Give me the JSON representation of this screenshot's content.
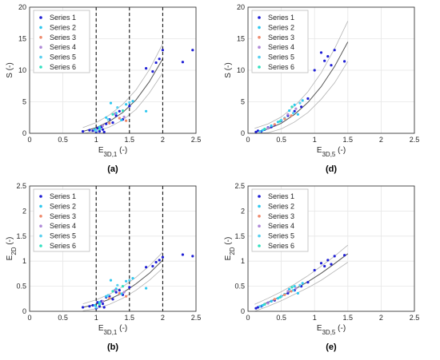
{
  "figure": {
    "colors": {
      "axis": "#262626",
      "grid": "#e6e6e6",
      "fit": "#555555",
      "band": "#b3b3b3",
      "series1": "#1f1fd6",
      "series2": "#2ec8f0",
      "series3": "#f08a6c",
      "series4": "#b08ad8",
      "series5": "#58d0f0",
      "series6": "#30e0c0"
    },
    "legend_labels": [
      "Series 1",
      "Series 2",
      "Series 3",
      "Series 4",
      "Series 5",
      "Series 6"
    ]
  },
  "chart_data": [
    {
      "type": "scatter",
      "panel_label": "(a)",
      "xlabel": "E3D,1 (-)",
      "ylabel": "S (-)",
      "xlim": [
        0,
        2.5
      ],
      "ylim": [
        0,
        20
      ],
      "xticks": [
        "0",
        "0.5",
        "1",
        "1.5",
        "2",
        "2.5"
      ],
      "yticks": [
        "0",
        "5",
        "10",
        "15",
        "20"
      ],
      "grid": true,
      "legend_position": "top-left",
      "vlines": [
        1,
        1.5,
        2
      ],
      "fit": {
        "x": [
          0.8,
          1.0,
          1.2,
          1.4,
          1.6,
          1.8,
          2.0
        ],
        "y": [
          0.3,
          0.9,
          1.9,
          3.3,
          5.3,
          8.2,
          11.8
        ]
      },
      "band_upper": {
        "x": [
          0.8,
          1.0,
          1.2,
          1.4,
          1.6,
          1.8,
          2.0
        ],
        "y": [
          0.9,
          1.7,
          2.9,
          4.6,
          6.9,
          10.1,
          14.2
        ]
      },
      "band_lower": {
        "x": [
          0.8,
          1.0,
          1.2,
          1.4,
          1.6,
          1.8,
          2.0
        ],
        "y": [
          0.0,
          0.3,
          1.0,
          2.1,
          3.8,
          6.4,
          9.6
        ]
      },
      "series": [
        {
          "name": "Series 1",
          "x": [
            0.8,
            0.9,
            0.95,
            1.0,
            1.02,
            1.05,
            1.08,
            1.1,
            1.12,
            1.15,
            1.2,
            1.25,
            1.3,
            1.35,
            1.4,
            1.5,
            1.75,
            1.85,
            1.9,
            1.95,
            2.0,
            2.3,
            2.45
          ],
          "y": [
            0.3,
            0.5,
            0.4,
            0.2,
            0.8,
            0.3,
            1.0,
            0.6,
            0.2,
            1.5,
            2.2,
            1.7,
            2.8,
            3.5,
            2.2,
            4.3,
            10.3,
            9.8,
            11.2,
            11.8,
            13.2,
            11.3,
            13.2
          ]
        },
        {
          "name": "Series 2",
          "x": [
            0.98,
            1.05,
            1.15,
            1.22,
            1.3,
            1.38,
            1.45,
            1.55,
            1.75
          ],
          "y": [
            0.6,
            1.0,
            2.5,
            4.8,
            3.2,
            2.1,
            4.6,
            5.1,
            3.5
          ]
        },
        {
          "name": "Series 3",
          "x": [
            1.2,
            1.35,
            1.45
          ],
          "y": [
            1.6,
            2.4,
            2.0
          ]
        },
        {
          "name": "Series 4",
          "x": [
            1.1,
            1.28,
            1.42
          ],
          "y": [
            1.2,
            3.1,
            2.6
          ]
        },
        {
          "name": "Series 5",
          "x": [
            1.0,
            1.18,
            1.32,
            1.5
          ],
          "y": [
            0.4,
            2.2,
            4.1,
            4.9
          ]
        },
        {
          "name": "Series 6",
          "x": [
            1.05,
            1.25,
            1.4
          ],
          "y": [
            0.7,
            3.0,
            3.6
          ]
        }
      ]
    },
    {
      "type": "scatter",
      "panel_label": "(d)",
      "xlabel": "E3D,5 (-)",
      "ylabel": "S (-)",
      "xlim": [
        0,
        2.5
      ],
      "ylim": [
        0,
        20
      ],
      "xticks": [
        "0",
        "0.5",
        "1",
        "1.5",
        "2",
        "2.5"
      ],
      "yticks": [
        "0",
        "5",
        "10",
        "15",
        "20"
      ],
      "grid": true,
      "legend_position": "top-left",
      "vlines": [],
      "fit": {
        "x": [
          0.1,
          0.3,
          0.5,
          0.7,
          0.9,
          1.1,
          1.3,
          1.5
        ],
        "y": [
          0.2,
          0.7,
          1.6,
          3.0,
          4.9,
          7.4,
          10.6,
          14.5
        ]
      },
      "band_upper": {
        "x": [
          0.1,
          0.3,
          0.5,
          0.7,
          0.9,
          1.1,
          1.3,
          1.5
        ],
        "y": [
          0.8,
          1.5,
          2.6,
          4.3,
          6.6,
          9.6,
          13.4,
          17.8
        ]
      },
      "band_lower": {
        "x": [
          0.1,
          0.3,
          0.5,
          0.7,
          0.9,
          1.1,
          1.3,
          1.5
        ],
        "y": [
          0.0,
          0.1,
          0.7,
          1.8,
          3.3,
          5.4,
          8.0,
          11.4
        ]
      },
      "series": [
        {
          "name": "Series 1",
          "x": [
            0.12,
            0.15,
            0.2,
            0.25,
            0.3,
            0.35,
            0.4,
            0.5,
            0.6,
            0.7,
            0.8,
            0.9,
            1.0,
            1.1,
            1.15,
            1.2,
            1.25,
            1.3,
            1.45
          ],
          "y": [
            0.2,
            0.4,
            0.3,
            0.6,
            0.9,
            1.0,
            1.3,
            2.0,
            2.8,
            3.5,
            4.2,
            5.5,
            10.0,
            12.8,
            11.5,
            12.2,
            10.8,
            13.2,
            11.4
          ]
        },
        {
          "name": "Series 2",
          "x": [
            0.22,
            0.35,
            0.45,
            0.55,
            0.62,
            0.7,
            0.75,
            0.82
          ],
          "y": [
            0.5,
            1.2,
            1.8,
            2.4,
            3.6,
            4.5,
            3.0,
            5.2
          ]
        },
        {
          "name": "Series 3",
          "x": [
            0.4,
            0.55,
            0.65
          ],
          "y": [
            1.4,
            2.3,
            2.8
          ]
        },
        {
          "name": "Series 4",
          "x": [
            0.3,
            0.6,
            0.72
          ],
          "y": [
            0.8,
            3.0,
            3.9
          ]
        },
        {
          "name": "Series 5",
          "x": [
            0.18,
            0.5,
            0.68,
            0.78
          ],
          "y": [
            0.3,
            2.1,
            3.2,
            4.8
          ]
        },
        {
          "name": "Series 6",
          "x": [
            0.25,
            0.48,
            0.66
          ],
          "y": [
            0.7,
            1.9,
            4.2
          ]
        }
      ]
    },
    {
      "type": "scatter",
      "panel_label": "(b)",
      "xlabel": "E3D,1 (-)",
      "ylabel": "E2D (-)",
      "xlim": [
        0,
        2.5
      ],
      "ylim": [
        0,
        2.5
      ],
      "xticks": [
        "0",
        "0.5",
        "1",
        "1.5",
        "2",
        "2.5"
      ],
      "yticks": [
        "0",
        "0.5",
        "1",
        "1.5",
        "2",
        "2.5"
      ],
      "grid": true,
      "legend_position": "top-left",
      "vlines": [
        1,
        1.5,
        2
      ],
      "fit": {
        "x": [
          0.8,
          1.0,
          1.2,
          1.4,
          1.6,
          1.8,
          2.0
        ],
        "y": [
          0.08,
          0.14,
          0.24,
          0.37,
          0.55,
          0.76,
          1.02
        ]
      },
      "band_upper": {
        "x": [
          0.8,
          1.0,
          1.2,
          1.4,
          1.6,
          1.8,
          2.0
        ],
        "y": [
          0.15,
          0.23,
          0.34,
          0.49,
          0.68,
          0.91,
          1.18
        ]
      },
      "band_lower": {
        "x": [
          0.8,
          1.0,
          1.2,
          1.4,
          1.6,
          1.8,
          2.0
        ],
        "y": [
          0.01,
          0.05,
          0.14,
          0.26,
          0.42,
          0.62,
          0.86
        ]
      },
      "series": [
        {
          "name": "Series 1",
          "x": [
            0.8,
            0.9,
            0.95,
            1.0,
            1.02,
            1.05,
            1.08,
            1.1,
            1.12,
            1.15,
            1.2,
            1.25,
            1.3,
            1.35,
            1.4,
            1.5,
            1.75,
            1.85,
            1.9,
            1.95,
            2.0,
            2.3,
            2.45
          ],
          "y": [
            0.08,
            0.1,
            0.12,
            0.06,
            0.18,
            0.1,
            0.2,
            0.15,
            0.08,
            0.28,
            0.3,
            0.24,
            0.38,
            0.42,
            0.33,
            0.48,
            0.88,
            0.9,
            0.98,
            1.02,
            1.08,
            1.13,
            1.1
          ]
        },
        {
          "name": "Series 2",
          "x": [
            0.98,
            1.05,
            1.15,
            1.22,
            1.3,
            1.38,
            1.45,
            1.55,
            1.75
          ],
          "y": [
            0.12,
            0.18,
            0.3,
            0.62,
            0.45,
            0.35,
            0.6,
            0.66,
            0.46
          ]
        },
        {
          "name": "Series 3",
          "x": [
            1.2,
            1.35,
            1.45
          ],
          "y": [
            0.26,
            0.36,
            0.3
          ]
        },
        {
          "name": "Series 4",
          "x": [
            1.1,
            1.28,
            1.42
          ],
          "y": [
            0.2,
            0.42,
            0.38
          ]
        },
        {
          "name": "Series 5",
          "x": [
            1.0,
            1.18,
            1.32,
            1.5
          ],
          "y": [
            0.08,
            0.32,
            0.52,
            0.62
          ]
        },
        {
          "name": "Series 6",
          "x": [
            1.05,
            1.25,
            1.4
          ],
          "y": [
            0.14,
            0.4,
            0.5
          ]
        }
      ]
    },
    {
      "type": "scatter",
      "panel_label": "(e)",
      "xlabel": "E3D,5 (-)",
      "ylabel": "E2D (-)",
      "xlim": [
        0,
        2.5
      ],
      "ylim": [
        0,
        2.5
      ],
      "xticks": [
        "0",
        "0.5",
        "1",
        "1.5",
        "2",
        "2.5"
      ],
      "yticks": [
        "0",
        "0.5",
        "1",
        "1.5",
        "2",
        "2.5"
      ],
      "grid": true,
      "legend_position": "top-left",
      "vlines": [],
      "fit": {
        "x": [
          0.1,
          0.3,
          0.5,
          0.7,
          0.9,
          1.1,
          1.3,
          1.5
        ],
        "y": [
          0.06,
          0.18,
          0.3,
          0.44,
          0.59,
          0.76,
          0.95,
          1.15
        ]
      },
      "band_upper": {
        "x": [
          0.1,
          0.3,
          0.5,
          0.7,
          0.9,
          1.1,
          1.3,
          1.5
        ],
        "y": [
          0.14,
          0.26,
          0.39,
          0.54,
          0.71,
          0.9,
          1.1,
          1.32
        ]
      },
      "band_lower": {
        "x": [
          0.1,
          0.3,
          0.5,
          0.7,
          0.9,
          1.1,
          1.3,
          1.5
        ],
        "y": [
          0.0,
          0.1,
          0.21,
          0.34,
          0.47,
          0.62,
          0.8,
          0.98
        ]
      },
      "series": [
        {
          "name": "Series 1",
          "x": [
            0.12,
            0.15,
            0.2,
            0.25,
            0.3,
            0.35,
            0.4,
            0.5,
            0.6,
            0.7,
            0.8,
            0.9,
            1.0,
            1.1,
            1.15,
            1.2,
            1.25,
            1.3,
            1.45
          ],
          "y": [
            0.06,
            0.08,
            0.1,
            0.14,
            0.17,
            0.2,
            0.22,
            0.3,
            0.36,
            0.42,
            0.5,
            0.58,
            0.82,
            0.96,
            0.9,
            1.02,
            0.94,
            1.1,
            1.12
          ]
        },
        {
          "name": "Series 2",
          "x": [
            0.22,
            0.35,
            0.45,
            0.55,
            0.62,
            0.7,
            0.75,
            0.82
          ],
          "y": [
            0.12,
            0.2,
            0.26,
            0.34,
            0.44,
            0.5,
            0.36,
            0.56
          ]
        },
        {
          "name": "Series 3",
          "x": [
            0.4,
            0.55,
            0.65
          ],
          "y": [
            0.24,
            0.33,
            0.4
          ]
        },
        {
          "name": "Series 4",
          "x": [
            0.3,
            0.6,
            0.72
          ],
          "y": [
            0.16,
            0.4,
            0.46
          ]
        },
        {
          "name": "Series 5",
          "x": [
            0.18,
            0.5,
            0.68,
            0.78
          ],
          "y": [
            0.1,
            0.3,
            0.42,
            0.52
          ]
        },
        {
          "name": "Series 6",
          "x": [
            0.25,
            0.48,
            0.66
          ],
          "y": [
            0.14,
            0.28,
            0.48
          ]
        }
      ]
    }
  ]
}
